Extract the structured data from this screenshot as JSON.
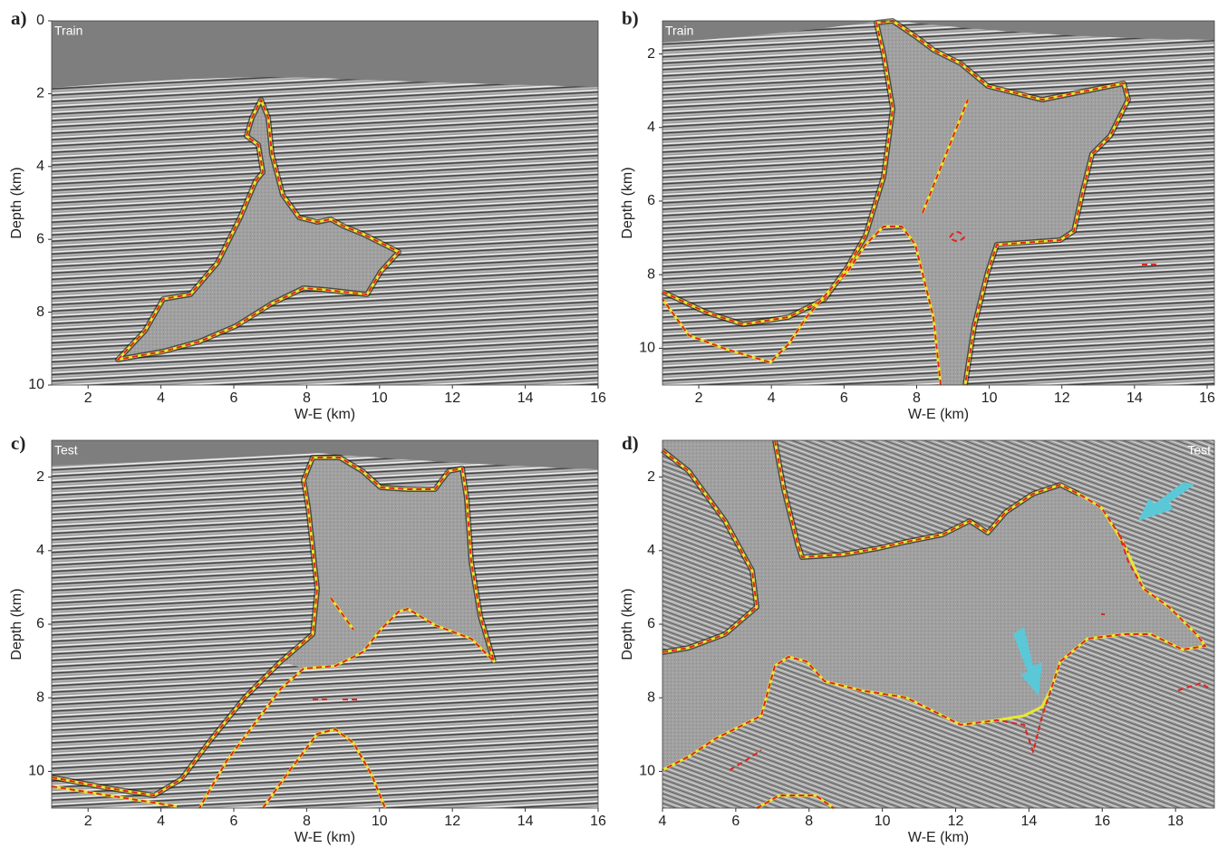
{
  "panels": [
    {
      "label": "a)",
      "tag": "Train",
      "x_label": "W-E (km)",
      "y_label": "Depth (km)",
      "xlim": [
        1,
        16
      ],
      "ylim": [
        0,
        10
      ],
      "xticks": [
        2,
        4,
        6,
        8,
        10,
        12,
        14,
        16
      ],
      "yticks": [
        0,
        2,
        4,
        6,
        8,
        10
      ]
    },
    {
      "label": "b)",
      "tag": "Train",
      "x_label": "W-E (km)",
      "y_label": "Depth (km)",
      "xlim": [
        1,
        16.2
      ],
      "ylim": [
        1.1,
        11
      ],
      "xticks": [
        2,
        4,
        6,
        8,
        10,
        12,
        14,
        16
      ],
      "yticks": [
        2,
        4,
        6,
        8,
        10
      ]
    },
    {
      "label": "c)",
      "tag": "Test",
      "x_label": "W-E (km)",
      "y_label": "Depth (km)",
      "xlim": [
        1,
        16
      ],
      "ylim": [
        1,
        11
      ],
      "xticks": [
        2,
        4,
        6,
        8,
        10,
        12,
        14,
        16
      ],
      "yticks": [
        2,
        4,
        6,
        8,
        10
      ]
    },
    {
      "label": "d)",
      "tag": "Test",
      "x_label": "W-E (km)",
      "y_label": "Depth (km)",
      "xlim": [
        4,
        19.06
      ],
      "ylim": [
        1,
        11
      ],
      "xticks": [
        4,
        6,
        8,
        10,
        12,
        14,
        16,
        18
      ],
      "yticks": [
        2,
        4,
        6,
        8,
        10
      ]
    }
  ]
}
